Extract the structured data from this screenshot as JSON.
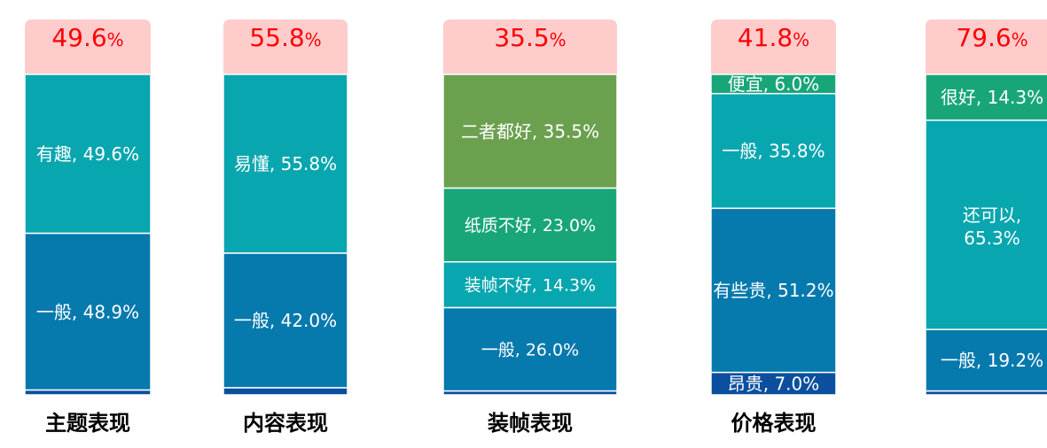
{
  "colors": {
    "header_bg": "#ffcccc",
    "header_text": "#ff0000",
    "teal": "#08a6af",
    "blue": "#0679ad",
    "green": "#6ba04f",
    "emerald": "#18a679",
    "navy": "#0b4f9e",
    "segment_text": "#ffffff",
    "title_text": "#000000"
  },
  "chart_data": {
    "type": "bar",
    "stacked": true,
    "normalized": true,
    "categories": [
      "主题表现",
      "内容表现",
      "装帧表现",
      "价格表现",
      ""
    ],
    "bars": [
      {
        "title": "主题表现",
        "highlight_value": "49.6",
        "highlight_unit": "%",
        "segments": [
          {
            "label": "有趣, 49.6%",
            "value": 49.6,
            "color": "teal"
          },
          {
            "label": "一般, 48.9%",
            "value": 48.9,
            "color": "blue"
          },
          {
            "label": "",
            "value": 1.5,
            "color": "navy"
          }
        ]
      },
      {
        "title": "内容表现",
        "highlight_value": "55.8",
        "highlight_unit": "%",
        "segments": [
          {
            "label": "易懂, 55.8%",
            "value": 55.8,
            "color": "teal"
          },
          {
            "label": "一般, 42.0%",
            "value": 42.0,
            "color": "blue"
          },
          {
            "label": "",
            "value": 2.2,
            "color": "navy"
          }
        ]
      },
      {
        "title": "装帧表现",
        "highlight_value": "35.5",
        "highlight_unit": "%",
        "segments": [
          {
            "label": "二者都好, 35.5%",
            "value": 35.5,
            "color": "green"
          },
          {
            "label": "纸质不好, 23.0%",
            "value": 23.0,
            "color": "emerald"
          },
          {
            "label": "装帧不好, 14.3%",
            "value": 14.3,
            "color": "teal"
          },
          {
            "label": "一般, 26.0%",
            "value": 26.0,
            "color": "blue"
          },
          {
            "label": "",
            "value": 1.2,
            "color": "navy"
          }
        ]
      },
      {
        "title": "价格表现",
        "highlight_value": "41.8",
        "highlight_unit": "%",
        "segments": [
          {
            "label": "便宜, 6.0%",
            "value": 6.0,
            "color": "emerald"
          },
          {
            "label": "一般, 35.8%",
            "value": 35.8,
            "color": "teal"
          },
          {
            "label": "有些贵, 51.2%",
            "value": 51.2,
            "color": "blue"
          },
          {
            "label": "昂贵, 7.0%",
            "value": 7.0,
            "color": "navy"
          }
        ]
      },
      {
        "title": "",
        "highlight_value": "79.6",
        "highlight_unit": "%",
        "segments": [
          {
            "label": "很好, 14.3%",
            "value": 14.3,
            "color": "emerald"
          },
          {
            "label": "还可以, 65.3%",
            "value": 65.3,
            "color": "teal"
          },
          {
            "label": "一般, 19.2%",
            "value": 19.2,
            "color": "blue"
          },
          {
            "label": "",
            "value": 1.2,
            "color": "navy"
          }
        ]
      }
    ]
  }
}
